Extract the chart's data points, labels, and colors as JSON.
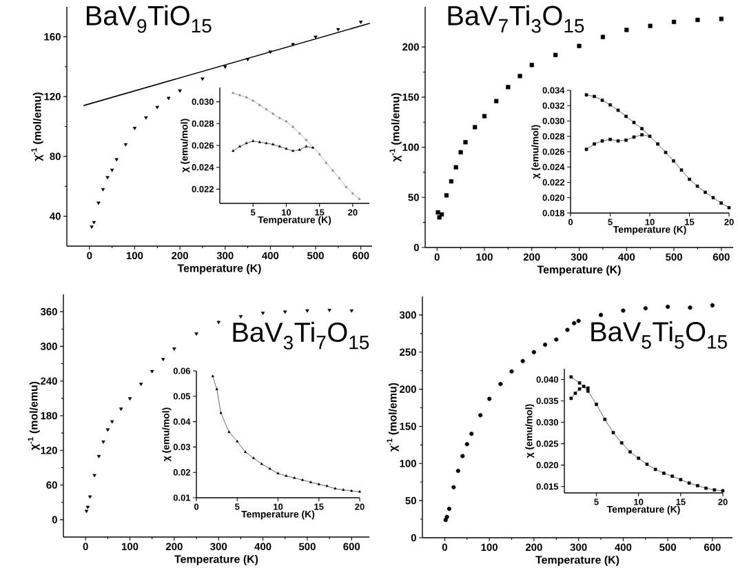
{
  "chart_data": [
    {
      "type": "scatter",
      "title": "BaV$_{9}$TiO$_{15}$",
      "xlabel": "Temperature (K)",
      "ylabel": "χ$^{-1}$  (mol/emu)",
      "marker": "triangle",
      "xlim": [
        -50,
        625
      ],
      "ylim": [
        20,
        180
      ],
      "xticks": [
        0,
        100,
        200,
        300,
        400,
        500,
        600
      ],
      "yticks": [
        40,
        80,
        120,
        160
      ],
      "series": [
        {
          "color": "#000000",
          "x": [
            5,
            10,
            20,
            30,
            40,
            50,
            60,
            80,
            100,
            125,
            150,
            175,
            200,
            250,
            300,
            350,
            400,
            450,
            500,
            550,
            600
          ],
          "values": [
            33,
            36,
            49,
            58,
            66,
            71,
            78,
            88,
            99,
            106,
            113,
            119,
            124,
            132,
            140,
            145,
            150,
            155,
            160,
            165,
            170
          ]
        },
        {
          "type": "line",
          "marker": "none",
          "color": "#000000",
          "x": [
            -13,
            620
          ],
          "values": [
            114,
            169
          ]
        }
      ]
    },
    {
      "type": "line",
      "xlabel": "Temperature (K)",
      "ylabel": "χ (emu/mol)",
      "marker": "triangle",
      "xlim": [
        0,
        22.5
      ],
      "ylim": [
        0.0207,
        0.0313
      ],
      "xticks": [
        5,
        10,
        15,
        20
      ],
      "yticks": [
        0.022,
        0.024,
        0.026,
        0.028,
        {
          "value": 0.03,
          "label": "0.030"
        }
      ],
      "series": [
        {
          "color": "#888888",
          "x": [
            2,
            3,
            4,
            5,
            6,
            7,
            8,
            9,
            10,
            11,
            12,
            13,
            14,
            15,
            16,
            17,
            18,
            19,
            20,
            21
          ],
          "values": [
            0.0308,
            0.0306,
            0.0304,
            0.0301,
            0.0297,
            0.0293,
            0.0289,
            0.0285,
            0.0282,
            0.0277,
            0.0271,
            0.0265,
            null,
            0.0252,
            0.0244,
            0.0237,
            0.023,
            0.0222,
            0.0216,
            0.0211
          ]
        },
        {
          "color": "#000000",
          "x": [
            2,
            3,
            4,
            5,
            6,
            7,
            8,
            9,
            10,
            11,
            12,
            13,
            14
          ],
          "values": [
            0.0255,
            0.0259,
            0.0262,
            0.0264,
            0.0263,
            0.0262,
            0.0261,
            0.0259,
            0.0257,
            0.0255,
            0.0256,
            0.0259,
            0.0258
          ]
        }
      ]
    },
    {
      "type": "scatter",
      "title": "BaV$_{7}$Ti$_{3}$O$_{15}$",
      "xlabel": "Temperature (K)",
      "ylabel": "χ$^{-1}$  (mol/emu)",
      "marker": "square",
      "xlim": [
        -25,
        625
      ],
      "ylim": [
        0,
        240
      ],
      "xticks": [
        0,
        100,
        200,
        300,
        400,
        500,
        600
      ],
      "yticks": [
        0,
        50,
        100,
        150,
        200
      ],
      "series": [
        {
          "color": "#000000",
          "x": [
            2,
            5,
            10,
            20,
            30,
            40,
            50,
            60,
            80,
            100,
            125,
            150,
            175,
            200,
            250,
            300,
            350,
            400,
            450,
            500,
            550,
            600
          ],
          "values": [
            35,
            30,
            33,
            52,
            66,
            80,
            95,
            105,
            120,
            131,
            146,
            160,
            171,
            182,
            192,
            201,
            210,
            217,
            221,
            225,
            227,
            228
          ]
        }
      ]
    },
    {
      "type": "line",
      "xlabel": "Temperature (K)",
      "ylabel": "χ (emu/mol)",
      "marker": "square",
      "xlim": [
        0,
        20
      ],
      "ylim": [
        0.018,
        0.034
      ],
      "xticks": [
        0,
        5,
        10,
        15,
        20
      ],
      "yticks": [
        0.018,
        {
          "value": 0.02,
          "label": "0.020"
        },
        0.022,
        0.024,
        0.026,
        0.028,
        {
          "value": 0.03,
          "label": "0.030"
        },
        0.032,
        0.034
      ],
      "series": [
        {
          "color": "#000000",
          "x": [
            2,
            3,
            4,
            5,
            6,
            7,
            8,
            9,
            10,
            11,
            12,
            13,
            14,
            15,
            16,
            17,
            18,
            19,
            20
          ],
          "values": [
            0.0334,
            0.0332,
            0.0327,
            0.0321,
            0.0314,
            0.0306,
            0.0298,
            0.029,
            null,
            0.027,
            0.0259,
            0.0248,
            0.0236,
            0.0224,
            0.0215,
            0.0207,
            0.02,
            0.0193,
            0.0187
          ]
        },
        {
          "color": "#000000",
          "x": [
            2,
            3,
            4,
            5,
            6,
            7,
            8,
            9,
            10
          ],
          "values": [
            0.0263,
            0.027,
            0.0274,
            0.0276,
            0.0274,
            0.0275,
            0.0279,
            0.0282,
            0.028
          ]
        }
      ]
    },
    {
      "type": "scatter",
      "title": "BaV$_{3}$Ti$_{7}$O$_{15}$",
      "xlabel": "Temperature (K)",
      "ylabel": "χ$^{-1}$  (mol/emu)",
      "marker": "triangle",
      "xlim": [
        -50,
        640
      ],
      "ylim": [
        -30,
        390
      ],
      "xticks": [
        0,
        100,
        200,
        300,
        400,
        500,
        600
      ],
      "yticks": [
        0,
        60,
        120,
        180,
        240,
        300,
        360
      ],
      "series": [
        {
          "color": "#000000",
          "x": [
            2,
            5,
            10,
            20,
            30,
            40,
            50,
            60,
            80,
            100,
            125,
            150,
            175,
            200,
            250,
            300,
            350,
            400,
            450,
            500,
            550,
            600
          ],
          "values": [
            15,
            22,
            40,
            77,
            110,
            135,
            156,
            170,
            192,
            210,
            235,
            257,
            278,
            296,
            322,
            342,
            352,
            358,
            360,
            362,
            363,
            362
          ]
        }
      ]
    },
    {
      "type": "line",
      "xlabel": "Temperature (K)",
      "ylabel": "χ (emu/mol)",
      "marker": "triangle",
      "xlim": [
        0,
        20
      ],
      "ylim": [
        0.01,
        0.06
      ],
      "xticks": [
        0,
        5,
        10,
        15,
        20
      ],
      "yticks": [
        0.01,
        0.02,
        0.03,
        0.04,
        0.05,
        0.06
      ],
      "series": [
        {
          "color": "#000000",
          "x": [
            2,
            2.5,
            3,
            4,
            5,
            6,
            7,
            8,
            9,
            10,
            11,
            12,
            13,
            14,
            15,
            16,
            17,
            18,
            19,
            20
          ],
          "values": [
            0.0579,
            0.0528,
            0.0434,
            0.0359,
            0.0322,
            0.028,
            0.0256,
            0.0233,
            0.0214,
            0.0196,
            0.0186,
            0.0178,
            0.017,
            0.0161,
            0.0153,
            0.0146,
            0.0136,
            0.0131,
            0.0127,
            0.0124
          ]
        }
      ]
    },
    {
      "type": "scatter",
      "title": "BaV$_{5}$Ti$_{5}$O$_{15}$",
      "xlabel": "Temperature (K)",
      "ylabel": "χ$^{-1}$  (mol/emu)",
      "marker": "circle",
      "xlim": [
        -50,
        645
      ],
      "ylim": [
        0,
        325
      ],
      "xticks": [
        0,
        100,
        200,
        300,
        400,
        500,
        600
      ],
      "yticks": [
        0,
        50,
        100,
        150,
        200,
        250,
        300
      ],
      "series": [
        {
          "color": "#000000",
          "x": [
            2,
            5,
            10,
            20,
            30,
            40,
            50,
            60,
            80,
            100,
            125,
            150,
            175,
            200,
            225,
            250,
            275,
            290
          ],
          "values": [
            24,
            28,
            39,
            68,
            90,
            110,
            126,
            140,
            165,
            187,
            207,
            224,
            238,
            250,
            260,
            267,
            280,
            289
          ]
        },
        {
          "color": "#000000",
          "x": [
            300,
            350,
            400,
            450,
            500,
            550,
            600
          ],
          "values": [
            292,
            300,
            306,
            309,
            311,
            310,
            313
          ]
        }
      ]
    },
    {
      "type": "line",
      "xlabel": "Temperature (K)",
      "ylabel": "χ (emu/mol)",
      "marker": "square",
      "xlim": [
        1.2,
        20
      ],
      "ylim": [
        0.0135,
        0.0425
      ],
      "xticks": [
        5,
        10,
        15,
        20
      ],
      "yticks": [
        0.015,
        {
          "value": 0.02,
          "label": "0.020"
        },
        0.025,
        {
          "value": 0.03,
          "label": "0.030"
        },
        0.035,
        {
          "value": 0.04,
          "label": "0.040"
        }
      ],
      "series": [
        {
          "color": "#000000",
          "x": [
            2,
            3,
            4,
            5,
            6,
            7,
            8,
            9,
            10,
            11,
            12,
            13,
            14,
            15,
            16,
            17,
            18,
            19,
            20
          ],
          "values": [
            0.0406,
            0.0392,
            0.0373,
            0.0342,
            0.0307,
            0.0276,
            0.0252,
            0.0231,
            0.0216,
            0.0202,
            0.019,
            0.0181,
            0.0174,
            0.0166,
            0.0158,
            0.0152,
            0.0146,
            0.0142,
            0.014
          ]
        },
        {
          "color": "#000000",
          "x": [
            2,
            2.5,
            3,
            3.5,
            4
          ],
          "values": [
            0.0356,
            0.0368,
            0.0378,
            0.0384,
            0.038
          ]
        }
      ]
    }
  ]
}
